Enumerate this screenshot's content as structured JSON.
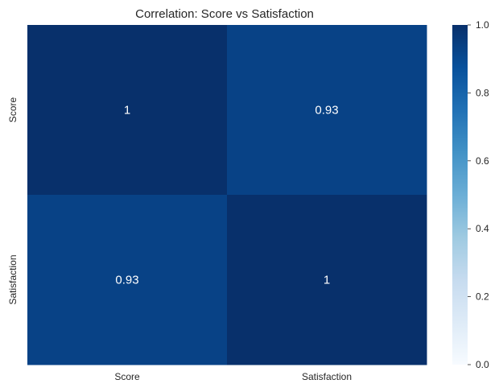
{
  "chart_data": {
    "type": "heatmap",
    "title": "Correlation: Score vs Satisfaction",
    "x_categories": [
      "Score",
      "Satisfaction"
    ],
    "y_categories": [
      "Score",
      "Satisfaction"
    ],
    "values": [
      [
        1,
        0.93
      ],
      [
        0.93,
        1
      ]
    ],
    "cell_labels": [
      [
        "1",
        "0.93"
      ],
      [
        "0.93",
        "1"
      ]
    ],
    "colormap": "Blues",
    "colorbar": {
      "range": [
        0,
        1
      ],
      "ticks": [
        0,
        0.2,
        0.4,
        0.6,
        0.8,
        1
      ],
      "tick_labels": [
        "0.0",
        "0.2",
        "0.4",
        "0.6",
        "0.8",
        "1.0"
      ]
    },
    "grid": false
  },
  "colors": {
    "cmap_stops": [
      "#f7fbff",
      "#deebf7",
      "#c6dbef",
      "#9ecae1",
      "#6baed6",
      "#4292c6",
      "#2171b5",
      "#08519c",
      "#08306b"
    ],
    "text_on_dark": "#ffffff",
    "axis_text": "#262626"
  }
}
